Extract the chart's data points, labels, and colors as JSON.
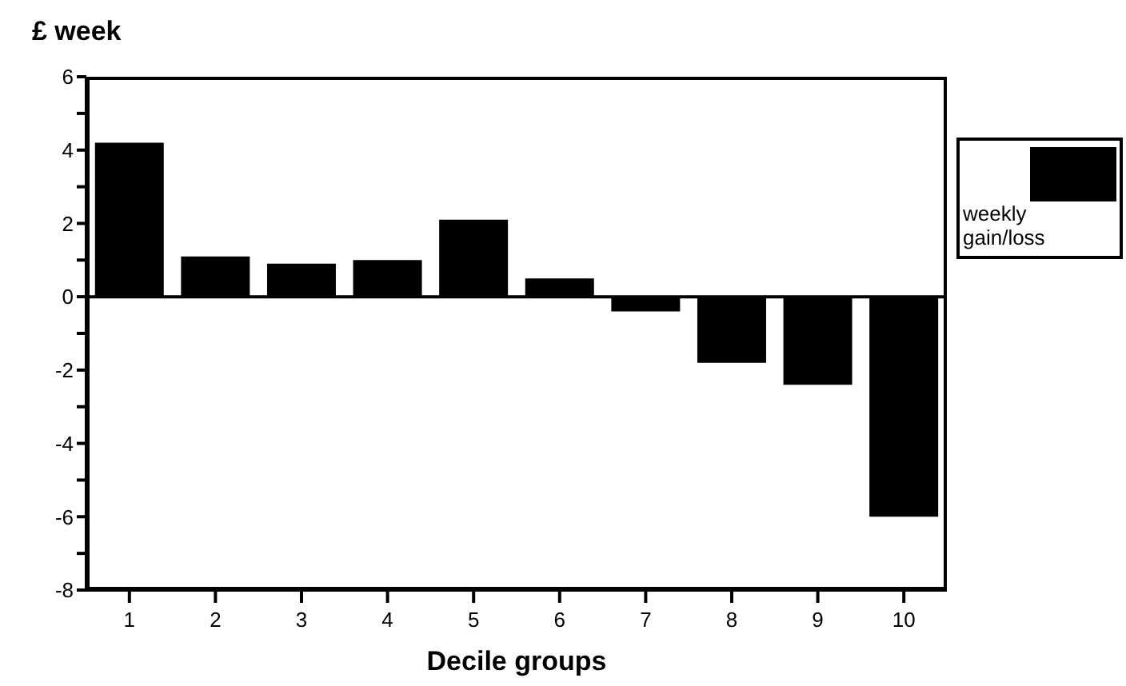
{
  "chart_data": {
    "type": "bar",
    "ylabel": "£ week",
    "xlabel": "Decile groups",
    "categories": [
      "1",
      "2",
      "3",
      "4",
      "5",
      "6",
      "7",
      "8",
      "9",
      "10"
    ],
    "series": [
      {
        "name": "weekly gain/loss",
        "color": "#000000",
        "values": [
          4.2,
          1.1,
          0.9,
          1.0,
          2.1,
          0.5,
          -0.4,
          -1.8,
          -2.4,
          -6.0
        ]
      }
    ],
    "ylim": [
      -8,
      6
    ],
    "yticks": [
      -8,
      {
        "value": -7,
        "label": null
      },
      -6,
      {
        "value": -5,
        "label": null
      },
      -4,
      {
        "value": -3,
        "label": null
      },
      -2,
      {
        "value": -1,
        "label": null
      },
      0,
      {
        "value": 1,
        "label": null
      },
      2,
      {
        "value": 3,
        "label": null
      },
      4,
      {
        "value": 5,
        "label": null
      },
      6
    ],
    "ref_lines": [
      {
        "axis": "y",
        "value": 0,
        "color": "#000000"
      }
    ],
    "legend": "right",
    "grid": false
  }
}
